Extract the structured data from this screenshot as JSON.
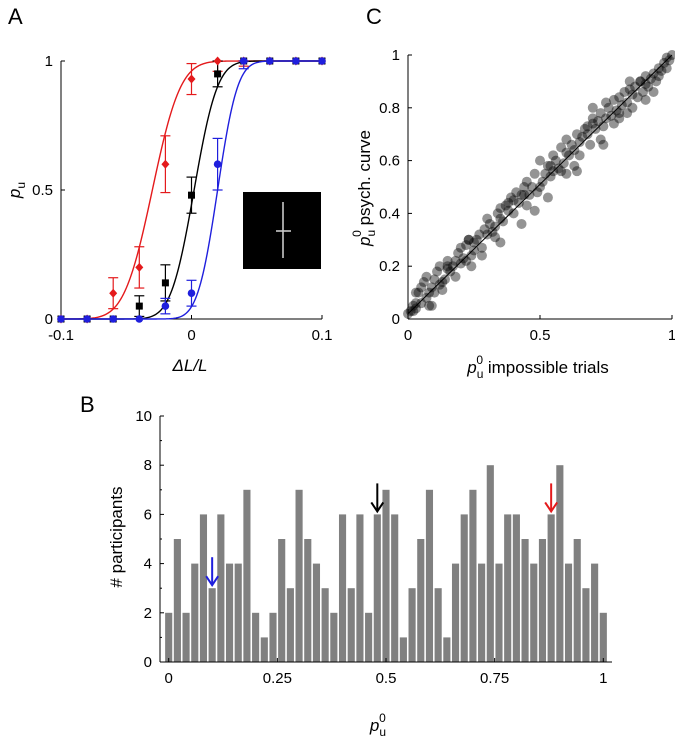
{
  "panels": {
    "a": "A",
    "b": "B",
    "c": "C"
  },
  "labels": {
    "a_x": "ΔL/L",
    "a_y": "p",
    "a_y_sub": "u",
    "c_x_main": "p",
    "c_x_sub": "u",
    "c_x_sup": "0",
    "c_x_rest": " impossible trials",
    "c_y_main": "p",
    "c_y_sub": "u",
    "c_y_sup": "0",
    "c_y_rest": " psych. curve",
    "b_x_main": "p",
    "b_x_sub": "u",
    "b_x_sup": "0",
    "b_y": "# participants"
  },
  "chart_data": [
    {
      "panel": "A",
      "type": "line",
      "xlabel": "ΔL/L",
      "ylabel": "p_u",
      "xlim": [
        -0.1,
        0.1
      ],
      "ylim": [
        0,
        1
      ],
      "xticks": [
        {
          "v": -0.1,
          "label": "-0.1"
        },
        {
          "v": 0,
          "label": "0"
        },
        {
          "v": 0.1,
          "label": "0.1"
        }
      ],
      "yticks": [
        {
          "v": 0,
          "label": "0"
        },
        {
          "v": 0.5,
          "label": "0.5"
        },
        {
          "v": 1,
          "label": "1"
        }
      ],
      "series": [
        {
          "name": "red",
          "color": "#e41a1c",
          "marker": "diamond",
          "mu": -0.03,
          "sigma": 0.017,
          "x": [
            -0.1,
            -0.08,
            -0.06,
            -0.04,
            -0.02,
            0,
            0.02,
            0.04,
            0.06,
            0.08,
            0.1
          ],
          "y": [
            0,
            0,
            0.1,
            0.2,
            0.6,
            0.93,
            1,
            1,
            1,
            1,
            1
          ],
          "err": [
            0,
            0,
            0.06,
            0.08,
            0.11,
            0.06,
            0.04,
            0.02,
            0,
            0,
            0
          ]
        },
        {
          "name": "black",
          "color": "#000000",
          "marker": "square",
          "mu": 0.002,
          "sigma": 0.014,
          "x": [
            -0.1,
            -0.08,
            -0.06,
            -0.04,
            -0.02,
            0,
            0.02,
            0.04,
            0.06,
            0.08,
            0.1
          ],
          "y": [
            0,
            0,
            0,
            0.05,
            0.14,
            0.48,
            0.95,
            1,
            1,
            1,
            1
          ],
          "err": [
            0,
            0,
            0,
            0.04,
            0.07,
            0.07,
            0.05,
            0,
            0,
            0,
            0
          ]
        },
        {
          "name": "blue",
          "color": "#1f1fdd",
          "marker": "circle",
          "mu": 0.02,
          "sigma": 0.012,
          "x": [
            -0.1,
            -0.08,
            -0.06,
            -0.04,
            -0.02,
            0,
            0.02,
            0.04,
            0.06,
            0.08,
            0.1
          ],
          "y": [
            0,
            0,
            0,
            0,
            0.05,
            0.1,
            0.6,
            1,
            1,
            1,
            1
          ],
          "err": [
            0,
            0,
            0,
            0,
            0.03,
            0.05,
            0.1,
            0.03,
            0,
            0,
            0
          ]
        }
      ]
    },
    {
      "panel": "C",
      "type": "scatter",
      "xlabel": "p_u^0 impossible trials",
      "ylabel": "p_u^0 psych. curve",
      "xlim": [
        0,
        1
      ],
      "ylim": [
        0,
        1
      ],
      "xticks": [
        {
          "v": 0,
          "label": "0"
        },
        {
          "v": 0.5,
          "label": "0.5"
        },
        {
          "v": 1,
          "label": "1"
        }
      ],
      "yticks": [
        {
          "v": 0,
          "label": "0"
        },
        {
          "v": 0.2,
          "label": "0.2"
        },
        {
          "v": 0.4,
          "label": "0.4"
        },
        {
          "v": 0.6,
          "label": "0.6"
        },
        {
          "v": 0.8,
          "label": "0.8"
        },
        {
          "v": 1,
          "label": "1"
        }
      ],
      "fit_line": [
        [
          0,
          0.02
        ],
        [
          1,
          1.0
        ]
      ],
      "x": [
        0.0,
        0.01,
        0.02,
        0.02,
        0.03,
        0.03,
        0.04,
        0.05,
        0.05,
        0.06,
        0.07,
        0.07,
        0.08,
        0.09,
        0.09,
        0.1,
        0.1,
        0.11,
        0.12,
        0.12,
        0.13,
        0.14,
        0.15,
        0.15,
        0.16,
        0.17,
        0.18,
        0.19,
        0.2,
        0.2,
        0.21,
        0.22,
        0.22,
        0.23,
        0.24,
        0.25,
        0.25,
        0.26,
        0.27,
        0.28,
        0.29,
        0.3,
        0.3,
        0.31,
        0.32,
        0.33,
        0.34,
        0.35,
        0.35,
        0.36,
        0.37,
        0.38,
        0.39,
        0.4,
        0.4,
        0.41,
        0.42,
        0.43,
        0.44,
        0.45,
        0.45,
        0.46,
        0.47,
        0.48,
        0.49,
        0.5,
        0.5,
        0.51,
        0.52,
        0.53,
        0.54,
        0.55,
        0.55,
        0.56,
        0.57,
        0.58,
        0.59,
        0.6,
        0.6,
        0.61,
        0.62,
        0.63,
        0.64,
        0.65,
        0.65,
        0.66,
        0.67,
        0.68,
        0.69,
        0.7,
        0.7,
        0.71,
        0.72,
        0.73,
        0.74,
        0.75,
        0.75,
        0.76,
        0.77,
        0.78,
        0.79,
        0.8,
        0.8,
        0.81,
        0.82,
        0.83,
        0.84,
        0.85,
        0.85,
        0.86,
        0.87,
        0.88,
        0.89,
        0.9,
        0.9,
        0.91,
        0.92,
        0.93,
        0.94,
        0.95,
        0.95,
        0.96,
        0.97,
        0.98,
        0.99,
        1.0,
        0.03,
        0.08,
        0.13,
        0.18,
        0.23,
        0.28,
        0.33,
        0.38,
        0.43,
        0.48,
        0.53,
        0.58,
        0.63,
        0.68,
        0.73,
        0.78,
        0.83,
        0.88,
        0.93,
        0.98,
        0.24,
        0.44,
        0.64,
        0.84,
        0.54,
        0.74,
        0.15,
        0.35,
        0.6,
        0.8,
        0.7,
        0.9
      ],
      "y": [
        0.02,
        0.03,
        0.03,
        0.05,
        0.04,
        0.06,
        0.1,
        0.06,
        0.12,
        0.14,
        0.08,
        0.16,
        0.1,
        0.12,
        0.05,
        0.1,
        0.15,
        0.18,
        0.13,
        0.2,
        0.14,
        0.15,
        0.19,
        0.22,
        0.18,
        0.2,
        0.22,
        0.25,
        0.21,
        0.27,
        0.23,
        0.22,
        0.28,
        0.3,
        0.24,
        0.29,
        0.26,
        0.3,
        0.32,
        0.27,
        0.34,
        0.32,
        0.38,
        0.36,
        0.33,
        0.35,
        0.4,
        0.38,
        0.42,
        0.37,
        0.43,
        0.41,
        0.46,
        0.4,
        0.45,
        0.48,
        0.44,
        0.47,
        0.5,
        0.43,
        0.52,
        0.47,
        0.5,
        0.55,
        0.48,
        0.5,
        0.6,
        0.52,
        0.55,
        0.58,
        0.54,
        0.56,
        0.62,
        0.6,
        0.57,
        0.65,
        0.59,
        0.63,
        0.68,
        0.62,
        0.66,
        0.64,
        0.7,
        0.67,
        0.62,
        0.69,
        0.72,
        0.7,
        0.66,
        0.74,
        0.8,
        0.72,
        0.75,
        0.78,
        0.73,
        0.76,
        0.82,
        0.8,
        0.77,
        0.83,
        0.79,
        0.84,
        0.78,
        0.81,
        0.86,
        0.82,
        0.87,
        0.85,
        0.8,
        0.88,
        0.84,
        0.9,
        0.86,
        0.89,
        0.92,
        0.88,
        0.91,
        0.93,
        0.9,
        0.95,
        0.92,
        0.94,
        0.97,
        0.95,
        0.98,
        1.0,
        0.1,
        0.05,
        0.11,
        0.16,
        0.3,
        0.24,
        0.31,
        0.44,
        0.36,
        0.41,
        0.46,
        0.56,
        0.58,
        0.73,
        0.68,
        0.74,
        0.78,
        0.9,
        0.86,
        0.99,
        0.2,
        0.47,
        0.56,
        0.9,
        0.58,
        0.66,
        0.2,
        0.29,
        0.55,
        0.76,
        0.76,
        0.83
      ]
    },
    {
      "panel": "B",
      "type": "bar",
      "xlabel": "p_u^0",
      "ylabel": "# participants",
      "xlim": [
        -0.02,
        1.02
      ],
      "ylim": [
        0,
        10
      ],
      "xticks": [
        {
          "v": 0,
          "label": "0"
        },
        {
          "v": 0.25,
          "label": "0.25"
        },
        {
          "v": 0.5,
          "label": "0.5"
        },
        {
          "v": 0.75,
          "label": "0.75"
        },
        {
          "v": 1,
          "label": "1"
        }
      ],
      "yticks": [
        {
          "v": 0,
          "label": "0"
        },
        {
          "v": 2,
          "label": "2"
        },
        {
          "v": 4,
          "label": "4"
        },
        {
          "v": 6,
          "label": "6"
        },
        {
          "v": 8,
          "label": "8"
        },
        {
          "v": 10,
          "label": "10"
        }
      ],
      "bar_color": "#808080",
      "bin_width": 0.02,
      "bin_centers": [
        0.0,
        0.02,
        0.04,
        0.06,
        0.08,
        0.1,
        0.12,
        0.14,
        0.16,
        0.18,
        0.2,
        0.22,
        0.24,
        0.26,
        0.28,
        0.3,
        0.32,
        0.34,
        0.36,
        0.38,
        0.4,
        0.42,
        0.44,
        0.46,
        0.48,
        0.5,
        0.52,
        0.54,
        0.56,
        0.58,
        0.6,
        0.62,
        0.64,
        0.66,
        0.68,
        0.7,
        0.72,
        0.74,
        0.76,
        0.78,
        0.8,
        0.82,
        0.84,
        0.86,
        0.88,
        0.9,
        0.92,
        0.94,
        0.96,
        0.98,
        1.0
      ],
      "values": [
        2,
        5,
        2,
        4,
        6,
        3,
        6,
        4,
        4,
        7,
        2,
        1,
        2,
        5,
        3,
        7,
        5,
        4,
        3,
        2,
        6,
        3,
        6,
        2,
        6,
        7,
        6,
        1,
        3,
        5,
        7,
        3,
        1,
        4,
        6,
        7,
        4,
        8,
        4,
        6,
        6,
        5,
        4,
        5,
        6,
        8,
        4,
        5,
        3,
        4,
        2
      ],
      "arrows": [
        {
          "x": 0.1,
          "color": "#1f1fdd"
        },
        {
          "x": 0.48,
          "color": "#000000"
        },
        {
          "x": 0.88,
          "color": "#e41a1c"
        }
      ]
    }
  ]
}
